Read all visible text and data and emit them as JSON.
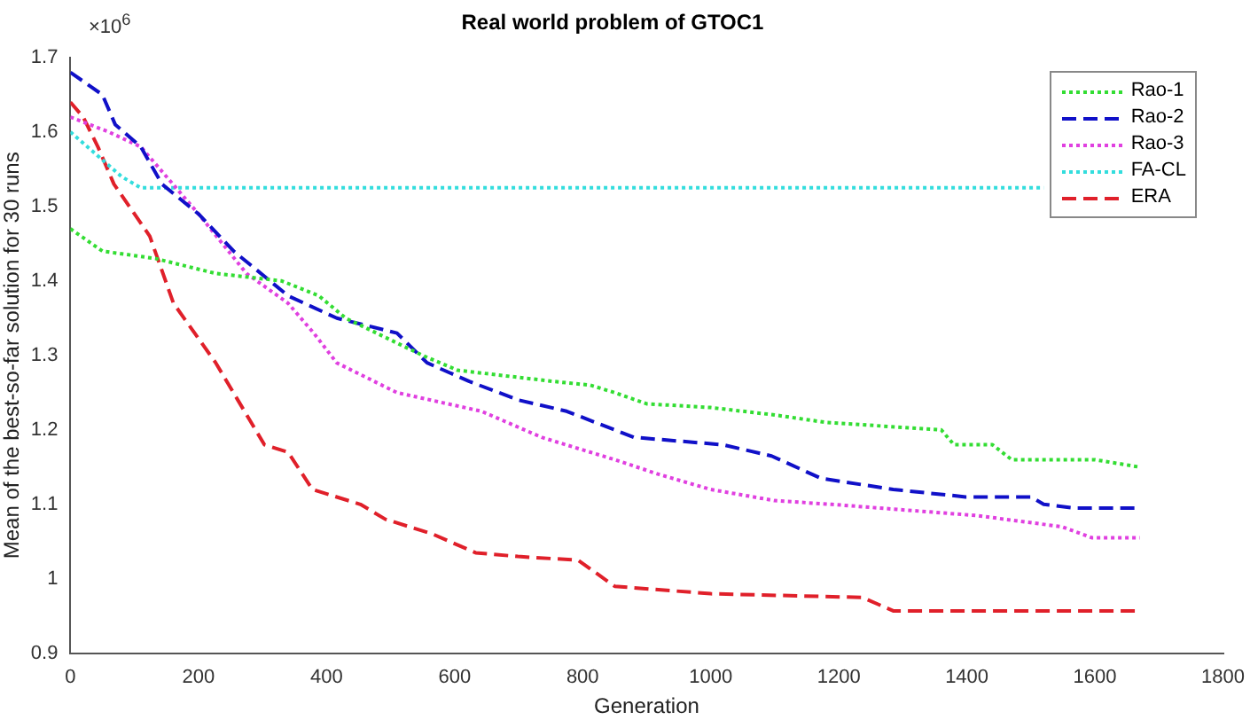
{
  "chart_data": {
    "type": "line",
    "title": "Real world problem of GTOC1",
    "xlabel": "Generation",
    "ylabel": "Mean of the best-so-far solution for 30 runs",
    "annotations": [
      "×10$^{6}$"
    ],
    "xlim": [
      0,
      1800
    ],
    "xticks": [
      0,
      200,
      400,
      600,
      800,
      1000,
      1200,
      1400,
      1600,
      1800
    ],
    "ylim": [
      0.9,
      1.7
    ],
    "yticks": [
      0.9,
      1,
      1.1,
      1.2,
      1.3,
      1.4,
      1.5,
      1.6,
      1.7
    ],
    "grid": false,
    "legend": "top right",
    "marker": "none",
    "series": [
      {
        "name": "Rao-1",
        "color": "#33dd33",
        "line_style": "dotted",
        "x": [
          0,
          50,
          133,
          227,
          330,
          388,
          430,
          550,
          605,
          755,
          812,
          850,
          900,
          1000,
          1100,
          1180,
          1360,
          1380,
          1440,
          1470,
          1600,
          1670
        ],
        "values": [
          1.47,
          1.44,
          1.43,
          1.41,
          1.4,
          1.38,
          1.35,
          1.3,
          1.28,
          1.265,
          1.26,
          1.25,
          1.235,
          1.23,
          1.22,
          1.21,
          1.2,
          1.18,
          1.18,
          1.16,
          1.16,
          1.15
        ]
      },
      {
        "name": "Rao-2",
        "color": "#1010c8",
        "line_style": "dashed",
        "x": [
          0,
          50,
          70,
          110,
          143,
          200,
          255,
          340,
          416,
          510,
          557,
          623,
          700,
          775,
          850,
          880,
          1019,
          1095,
          1172,
          1285,
          1398,
          1500,
          1520,
          1568,
          1670
        ],
        "values": [
          1.68,
          1.65,
          1.61,
          1.58,
          1.53,
          1.49,
          1.44,
          1.38,
          1.35,
          1.33,
          1.29,
          1.265,
          1.24,
          1.225,
          1.2,
          1.19,
          1.18,
          1.165,
          1.135,
          1.12,
          1.11,
          1.11,
          1.1,
          1.095,
          1.095
        ]
      },
      {
        "name": "Rao-3",
        "color": "#e040e0",
        "line_style": "dotted",
        "x": [
          0,
          60,
          110,
          160,
          200,
          275,
          340,
          380,
          416,
          510,
          642,
          736,
          850,
          920,
          1000,
          1100,
          1189,
          1415,
          1548,
          1596,
          1670
        ],
        "values": [
          1.62,
          1.6,
          1.58,
          1.53,
          1.49,
          1.41,
          1.37,
          1.33,
          1.29,
          1.25,
          1.225,
          1.19,
          1.16,
          1.14,
          1.12,
          1.105,
          1.1,
          1.085,
          1.07,
          1.055,
          1.055
        ]
      },
      {
        "name": "FA-CL",
        "color": "#33dddd",
        "line_style": "dotted",
        "x": [
          0,
          40,
          80,
          110,
          1520
        ],
        "values": [
          1.6,
          1.57,
          1.54,
          1.525,
          1.525
        ]
      },
      {
        "name": "ERA",
        "color": "#e0202a",
        "line_style": "dashed",
        "x": [
          0,
          20,
          43,
          68,
          124,
          161,
          227,
          303,
          340,
          378,
          453,
          492,
          566,
          633,
          699,
          793,
          850,
          1000,
          1237,
          1285,
          1670
        ],
        "values": [
          1.64,
          1.62,
          1.58,
          1.53,
          1.46,
          1.37,
          1.29,
          1.18,
          1.17,
          1.12,
          1.1,
          1.08,
          1.06,
          1.035,
          1.03,
          1.025,
          0.99,
          0.98,
          0.975,
          0.957,
          0.957
        ]
      }
    ]
  }
}
